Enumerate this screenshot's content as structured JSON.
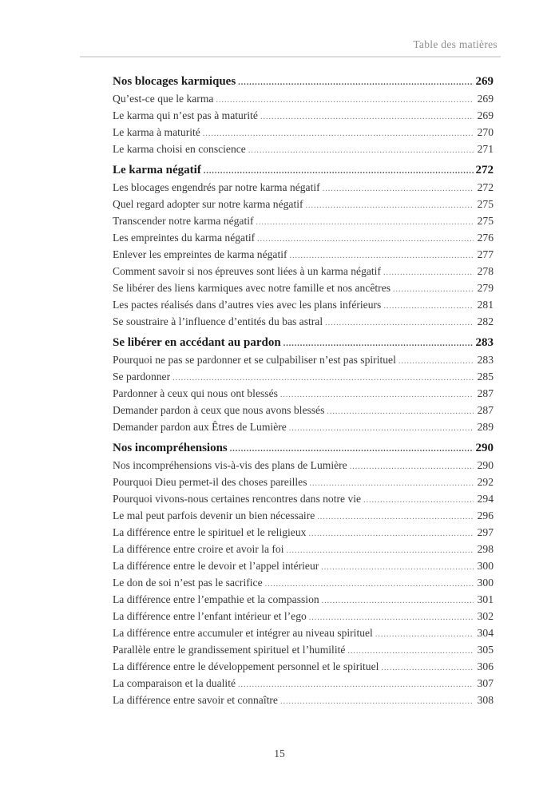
{
  "page": {
    "header": "Table des matières",
    "footer_page_number": "15"
  },
  "toc": {
    "sections": [
      {
        "title": "Nos blocages karmiques",
        "page": "269",
        "items": [
          {
            "label": "Qu’est-ce que le karma",
            "page": "269"
          },
          {
            "label": "Le karma qui n’est pas à maturité",
            "page": "269"
          },
          {
            "label": "Le karma à maturité",
            "page": "270"
          },
          {
            "label": "Le karma choisi en conscience",
            "page": "271"
          }
        ]
      },
      {
        "title": "Le karma négatif",
        "page": "272",
        "items": [
          {
            "label": "Les blocages engendrés par notre karma négatif",
            "page": "272"
          },
          {
            "label": "Quel regard adopter sur notre karma négatif",
            "page": "275"
          },
          {
            "label": "Transcender notre karma négatif",
            "page": "275"
          },
          {
            "label": "Les empreintes du karma négatif",
            "page": "276"
          },
          {
            "label": "Enlever les empreintes de karma négatif",
            "page": "277"
          },
          {
            "label": "Comment savoir si nos épreuves sont liées à un karma négatif",
            "page": "278"
          },
          {
            "label": "Se libérer des liens karmiques avec notre famille et nos ancêtres",
            "page": "279"
          },
          {
            "label": "Les pactes réalisés dans d’autres vies avec les plans inférieurs",
            "page": "281"
          },
          {
            "label": "Se soustraire à l’influence d’entités du bas astral",
            "page": "282"
          }
        ]
      },
      {
        "title": "Se libérer en accédant au pardon",
        "page": "283",
        "items": [
          {
            "label": "Pourquoi ne pas se pardonner et se culpabiliser n’est pas spirituel",
            "page": "283"
          },
          {
            "label": "Se pardonner",
            "page": "285"
          },
          {
            "label": "Pardonner à ceux qui nous ont blessés",
            "page": "287"
          },
          {
            "label": "Demander pardon à ceux que nous avons blessés",
            "page": "287"
          },
          {
            "label": "Demander pardon aux Êtres de Lumière",
            "page": "289"
          }
        ]
      },
      {
        "title": "Nos incompréhensions",
        "page": "290",
        "items": [
          {
            "label": "Nos incompréhensions vis-à-vis des plans de Lumière",
            "page": "290"
          },
          {
            "label": "Pourquoi Dieu permet-il des choses pareilles",
            "page": "292"
          },
          {
            "label": "Pourquoi vivons-nous certaines rencontres dans notre vie",
            "page": "294"
          },
          {
            "label": "Le mal peut parfois devenir un bien nécessaire",
            "page": "296"
          },
          {
            "label": "La différence entre le spirituel et le religieux",
            "page": "297"
          },
          {
            "label": "La différence entre croire et avoir la foi",
            "page": "298"
          },
          {
            "label": "La différence entre le devoir et l’appel intérieur",
            "page": "300"
          },
          {
            "label": "Le don de soi n’est pas le sacrifice",
            "page": "300"
          },
          {
            "label": "La différence entre l’empathie et la compassion",
            "page": "301"
          },
          {
            "label": "La différence entre l’enfant intérieur et l’ego",
            "page": "302"
          },
          {
            "label": "La différence entre accumuler et intégrer au niveau spirituel",
            "page": "304"
          },
          {
            "label": "Parallèle entre le grandissement spirituel et l’humilité",
            "page": "305"
          },
          {
            "label": "La différence entre le développement personnel et le spirituel",
            "page": "306"
          },
          {
            "label": "La comparaison et la dualité",
            "page": "307"
          },
          {
            "label": "La différence entre savoir et connaître",
            "page": "308"
          }
        ]
      }
    ]
  }
}
